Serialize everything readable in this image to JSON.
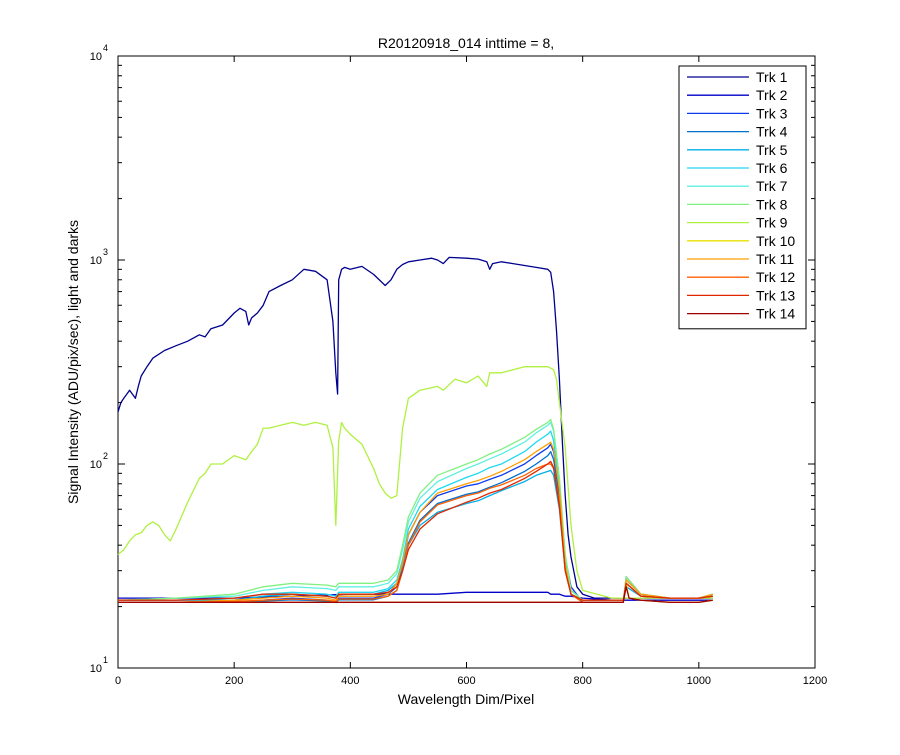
{
  "chart_data": {
    "type": "line",
    "title": "R20120918_014 inttime = 8,",
    "xlabel": "Wavelength Dim/Pixel",
    "ylabel": "Signal Intensity (ADU/pix/sec), light and darks",
    "xlim": [
      0,
      1200
    ],
    "ylim": [
      10,
      10000
    ],
    "yscale": "log",
    "grid": false,
    "legend_position": "top-right",
    "x_ticks": [
      "0",
      "200",
      "400",
      "600",
      "800",
      "1000",
      "1200"
    ],
    "y_ticks": [
      {
        "base": "10",
        "exp": "1"
      },
      {
        "base": "10",
        "exp": "2"
      },
      {
        "base": "10",
        "exp": "3"
      },
      {
        "base": "10",
        "exp": "4"
      }
    ],
    "series": [
      {
        "name": "Trk 1",
        "color": "#00008f",
        "x": [
          0,
          5,
          10,
          20,
          30,
          35,
          40,
          50,
          60,
          80,
          100,
          120,
          140,
          150,
          160,
          180,
          200,
          210,
          220,
          225,
          230,
          240,
          250,
          260,
          280,
          300,
          320,
          340,
          360,
          370,
          375,
          378,
          380,
          385,
          390,
          400,
          420,
          440,
          460,
          470,
          480,
          490,
          500,
          520,
          540,
          550,
          560,
          570,
          600,
          620,
          635,
          640,
          645,
          660,
          680,
          700,
          720,
          740,
          745,
          750,
          755,
          760,
          765,
          770,
          775,
          780,
          790,
          800,
          820,
          850,
          870,
          900,
          950,
          1000,
          1024
        ],
        "y": [
          180,
          200,
          210,
          230,
          210,
          240,
          270,
          300,
          330,
          360,
          380,
          400,
          430,
          420,
          460,
          480,
          550,
          580,
          560,
          480,
          520,
          550,
          600,
          700,
          750,
          800,
          900,
          880,
          800,
          500,
          280,
          220,
          800,
          900,
          920,
          900,
          930,
          850,
          750,
          800,
          900,
          950,
          980,
          1000,
          1020,
          1000,
          960,
          1030,
          1020,
          1010,
          980,
          900,
          960,
          980,
          960,
          940,
          920,
          900,
          870,
          700,
          450,
          260,
          130,
          70,
          45,
          35,
          25,
          23,
          22,
          22,
          22,
          22,
          22,
          22,
          22
        ]
      },
      {
        "name": "Trk 2",
        "color": "#0000c8",
        "x": [
          0,
          100,
          200,
          300,
          400,
          470,
          480,
          500,
          550,
          600,
          620,
          640,
          660,
          700,
          720,
          740,
          745,
          760,
          770,
          780,
          800,
          850,
          870,
          900,
          950,
          1000,
          1024
        ],
        "y": [
          22,
          22,
          22,
          22.5,
          23,
          23,
          23,
          23,
          23,
          23.5,
          23.5,
          23.5,
          23.5,
          23.5,
          23.5,
          23.5,
          23,
          23,
          22.5,
          22.5,
          22,
          21.5,
          21.5,
          21.5,
          21.5,
          21.5,
          21.5
        ]
      },
      {
        "name": "Trk 3",
        "color": "#0c3cf0",
        "x": [
          0,
          100,
          200,
          250,
          300,
          360,
          375,
          380,
          390,
          440,
          465,
          480,
          490,
          500,
          520,
          550,
          600,
          620,
          640,
          660,
          700,
          720,
          740,
          745,
          750,
          760,
          770,
          780,
          800,
          850,
          870,
          875,
          900,
          950,
          1000,
          1024
        ],
        "y": [
          21,
          21,
          21,
          21.5,
          22,
          21.5,
          21,
          22,
          22,
          22,
          23,
          25,
          32,
          45,
          58,
          70,
          78,
          80,
          84,
          88,
          100,
          110,
          120,
          125,
          115,
          75,
          35,
          25,
          21,
          21,
          21,
          28,
          23,
          22,
          22,
          23
        ]
      },
      {
        "name": "Trk 4",
        "color": "#0070d0",
        "x": [
          0,
          100,
          200,
          250,
          300,
          360,
          375,
          380,
          390,
          440,
          465,
          480,
          490,
          500,
          520,
          550,
          600,
          620,
          640,
          660,
          700,
          720,
          740,
          745,
          750,
          760,
          770,
          780,
          800,
          850,
          870,
          875,
          900,
          950,
          1000,
          1024
        ],
        "y": [
          21,
          21,
          21,
          21.3,
          21.6,
          21.3,
          21,
          21.6,
          21.6,
          21.6,
          22.5,
          24,
          30,
          41,
          53,
          64,
          71,
          73,
          77,
          81,
          92,
          100,
          110,
          115,
          105,
          70,
          32,
          23,
          21,
          21,
          21,
          26,
          22.5,
          22,
          22,
          22.5
        ]
      },
      {
        "name": "Trk 5",
        "color": "#00b0e8",
        "x": [
          0,
          100,
          200,
          250,
          300,
          360,
          375,
          380,
          390,
          440,
          465,
          480,
          490,
          500,
          520,
          550,
          600,
          620,
          640,
          660,
          700,
          720,
          740,
          745,
          750,
          760,
          770,
          780,
          800,
          850,
          870,
          875,
          900,
          950,
          1000,
          1024
        ],
        "y": [
          21.5,
          21.5,
          21.5,
          22.5,
          23,
          22.5,
          22,
          23,
          23,
          23,
          24,
          26,
          32,
          40,
          50,
          58,
          64,
          66,
          70,
          74,
          82,
          88,
          92,
          93,
          88,
          60,
          30,
          23,
          21.5,
          21.5,
          21.5,
          25,
          22.5,
          22,
          22,
          22.5
        ]
      },
      {
        "name": "Trk 6",
        "color": "#20d8f0",
        "x": [
          0,
          100,
          200,
          250,
          300,
          360,
          375,
          380,
          390,
          440,
          465,
          480,
          490,
          500,
          520,
          550,
          600,
          620,
          640,
          660,
          700,
          720,
          740,
          745,
          750,
          760,
          770,
          780,
          800,
          850,
          870,
          875,
          900,
          950,
          1000,
          1024
        ],
        "y": [
          21.5,
          21.5,
          22,
          23,
          23.5,
          23,
          22.5,
          23.5,
          23.5,
          23.5,
          24.5,
          27,
          34,
          48,
          62,
          75,
          86,
          90,
          96,
          100,
          115,
          128,
          140,
          145,
          130,
          80,
          35,
          24,
          21.5,
          21.5,
          21.5,
          27,
          23,
          22,
          22,
          23
        ]
      },
      {
        "name": "Trk 7",
        "color": "#60f0e0",
        "x": [
          0,
          100,
          200,
          250,
          300,
          360,
          375,
          380,
          390,
          440,
          465,
          480,
          490,
          500,
          520,
          550,
          600,
          620,
          640,
          660,
          700,
          720,
          740,
          745,
          750,
          760,
          770,
          780,
          800,
          850,
          870,
          875,
          900,
          950,
          1000,
          1024
        ],
        "y": [
          21.5,
          22,
          22.5,
          24,
          25,
          24.5,
          24,
          25,
          25,
          25,
          26,
          29,
          38,
          52,
          68,
          82,
          95,
          100,
          106,
          112,
          128,
          142,
          155,
          160,
          145,
          85,
          36,
          24,
          21.5,
          21.5,
          21.5,
          27,
          23,
          22,
          22,
          23
        ]
      },
      {
        "name": "Trk 8",
        "color": "#80f080",
        "x": [
          0,
          100,
          200,
          250,
          300,
          360,
          375,
          380,
          390,
          440,
          465,
          480,
          490,
          500,
          520,
          550,
          600,
          620,
          640,
          660,
          700,
          720,
          740,
          745,
          750,
          760,
          770,
          780,
          800,
          850,
          870,
          875,
          900,
          950,
          1000,
          1024
        ],
        "y": [
          21.5,
          22,
          23,
          25,
          26,
          25.5,
          25,
          26,
          26,
          26,
          27,
          30,
          40,
          55,
          72,
          88,
          100,
          105,
          112,
          118,
          135,
          148,
          160,
          165,
          148,
          85,
          36,
          24,
          21.5,
          21.5,
          21.5,
          28,
          23,
          22,
          22,
          23
        ]
      },
      {
        "name": "Trk 9",
        "color": "#b0f040",
        "x": [
          0,
          10,
          20,
          30,
          40,
          50,
          60,
          70,
          80,
          90,
          100,
          120,
          140,
          150,
          160,
          180,
          200,
          220,
          230,
          240,
          250,
          260,
          280,
          300,
          320,
          340,
          360,
          370,
          375,
          380,
          385,
          390,
          400,
          420,
          440,
          450,
          460,
          470,
          480,
          490,
          500,
          520,
          550,
          560,
          580,
          600,
          620,
          635,
          640,
          660,
          700,
          720,
          740,
          750,
          755,
          760,
          770,
          780,
          790,
          800,
          850,
          870,
          900,
          950,
          1000,
          1024
        ],
        "y": [
          36,
          38,
          42,
          45,
          46,
          50,
          52,
          50,
          45,
          42,
          48,
          65,
          85,
          90,
          100,
          100,
          110,
          105,
          115,
          125,
          150,
          150,
          155,
          160,
          155,
          160,
          155,
          120,
          50,
          130,
          160,
          150,
          140,
          125,
          95,
          80,
          72,
          68,
          70,
          150,
          210,
          230,
          240,
          230,
          260,
          250,
          270,
          240,
          280,
          280,
          300,
          300,
          300,
          290,
          260,
          200,
          120,
          50,
          30,
          24,
          22,
          22,
          22,
          22,
          22,
          22
        ]
      },
      {
        "name": "Trk 10",
        "color": "#e8e000",
        "x": [
          0,
          100,
          200,
          300,
          400,
          470,
          480,
          500,
          550,
          600,
          700,
          740,
          750,
          760,
          770,
          780,
          800,
          850,
          870,
          875,
          880,
          900,
          950,
          1000,
          1024
        ],
        "y": [
          21,
          21,
          21,
          21,
          21,
          21,
          21,
          21,
          21,
          21,
          21,
          21,
          21,
          21,
          21,
          21,
          21,
          21,
          21,
          26,
          22,
          21.5,
          21,
          21,
          21.5
        ]
      },
      {
        "name": "Trk 11",
        "color": "#ff9e00",
        "x": [
          0,
          100,
          200,
          250,
          300,
          360,
          375,
          380,
          390,
          440,
          465,
          480,
          490,
          500,
          520,
          550,
          600,
          620,
          640,
          660,
          700,
          720,
          740,
          745,
          750,
          760,
          770,
          780,
          800,
          850,
          870,
          875,
          900,
          950,
          1000,
          1024
        ],
        "y": [
          21,
          21,
          21.5,
          22,
          22.5,
          22,
          21.5,
          22.5,
          22.5,
          22.5,
          23,
          26,
          33,
          45,
          58,
          72,
          80,
          83,
          87,
          92,
          105,
          115,
          125,
          128,
          118,
          75,
          32,
          23,
          21,
          21,
          21,
          27,
          23,
          22,
          22,
          23
        ]
      },
      {
        "name": "Trk 12",
        "color": "#ff6000",
        "x": [
          0,
          100,
          200,
          250,
          300,
          360,
          375,
          380,
          390,
          440,
          465,
          480,
          490,
          500,
          520,
          550,
          600,
          620,
          640,
          660,
          700,
          720,
          740,
          745,
          750,
          760,
          770,
          780,
          800,
          850,
          870,
          875,
          900,
          950,
          1000,
          1024
        ],
        "y": [
          21,
          21,
          21.2,
          21.5,
          21.8,
          21.5,
          21.2,
          21.8,
          21.8,
          21.8,
          22.5,
          24,
          30,
          40,
          52,
          63,
          70,
          72,
          76,
          79,
          88,
          95,
          100,
          100,
          95,
          65,
          30,
          23,
          21,
          21,
          21,
          26,
          22.5,
          22,
          22,
          22.5
        ]
      },
      {
        "name": "Trk 13",
        "color": "#e02800",
        "x": [
          0,
          100,
          200,
          250,
          300,
          360,
          375,
          380,
          390,
          440,
          465,
          480,
          490,
          500,
          520,
          550,
          600,
          620,
          640,
          660,
          700,
          720,
          740,
          745,
          750,
          760,
          770,
          780,
          800,
          850,
          870,
          875,
          900,
          950,
          1000,
          1024
        ],
        "y": [
          21.5,
          21.5,
          22,
          23,
          23,
          22.5,
          22,
          23,
          23,
          23,
          23.5,
          25,
          30,
          38,
          48,
          57,
          65,
          68,
          72,
          75,
          85,
          92,
          100,
          103,
          96,
          62,
          30,
          23,
          21.5,
          21.5,
          21.5,
          26,
          22.5,
          22,
          22,
          22.5
        ]
      },
      {
        "name": "Trk 14",
        "color": "#a00000",
        "x": [
          0,
          100,
          200,
          300,
          400,
          470,
          480,
          500,
          550,
          600,
          700,
          740,
          750,
          760,
          770,
          780,
          800,
          850,
          870,
          875,
          880,
          900,
          950,
          1000,
          1024
        ],
        "y": [
          21,
          21,
          21,
          21,
          21,
          21,
          21,
          21,
          21,
          21,
          21,
          21,
          21,
          21,
          21,
          21,
          21,
          21,
          21,
          25,
          22,
          21.5,
          21,
          21,
          21.5
        ]
      }
    ]
  }
}
